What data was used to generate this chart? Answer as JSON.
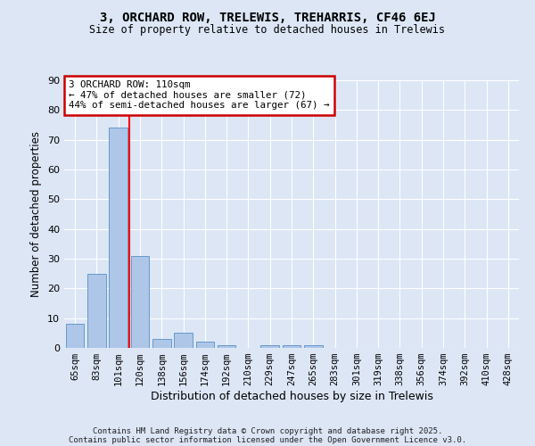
{
  "title1": "3, ORCHARD ROW, TRELEWIS, TREHARRIS, CF46 6EJ",
  "title2": "Size of property relative to detached houses in Trelewis",
  "xlabel": "Distribution of detached houses by size in Trelewis",
  "ylabel": "Number of detached properties",
  "categories": [
    "65sqm",
    "83sqm",
    "101sqm",
    "120sqm",
    "138sqm",
    "156sqm",
    "174sqm",
    "192sqm",
    "210sqm",
    "229sqm",
    "247sqm",
    "265sqm",
    "283sqm",
    "301sqm",
    "319sqm",
    "338sqm",
    "356sqm",
    "374sqm",
    "392sqm",
    "410sqm",
    "428sqm"
  ],
  "values": [
    8,
    25,
    74,
    31,
    3,
    5,
    2,
    1,
    0,
    1,
    1,
    1,
    0,
    0,
    0,
    0,
    0,
    0,
    0,
    0,
    0
  ],
  "bar_color": "#aec6e8",
  "bar_edge_color": "#6699cc",
  "bar_width": 0.85,
  "red_line_x": 2.5,
  "annotation_text": "3 ORCHARD ROW: 110sqm\n← 47% of detached houses are smaller (72)\n44% of semi-detached houses are larger (67) →",
  "annotation_box_color": "#ffffff",
  "annotation_box_edge_color": "#cc0000",
  "ylim": [
    0,
    90
  ],
  "yticks": [
    0,
    10,
    20,
    30,
    40,
    50,
    60,
    70,
    80,
    90
  ],
  "background_color": "#dce6f5",
  "grid_color": "#ffffff",
  "footer1": "Contains HM Land Registry data © Crown copyright and database right 2025.",
  "footer2": "Contains public sector information licensed under the Open Government Licence v3.0."
}
